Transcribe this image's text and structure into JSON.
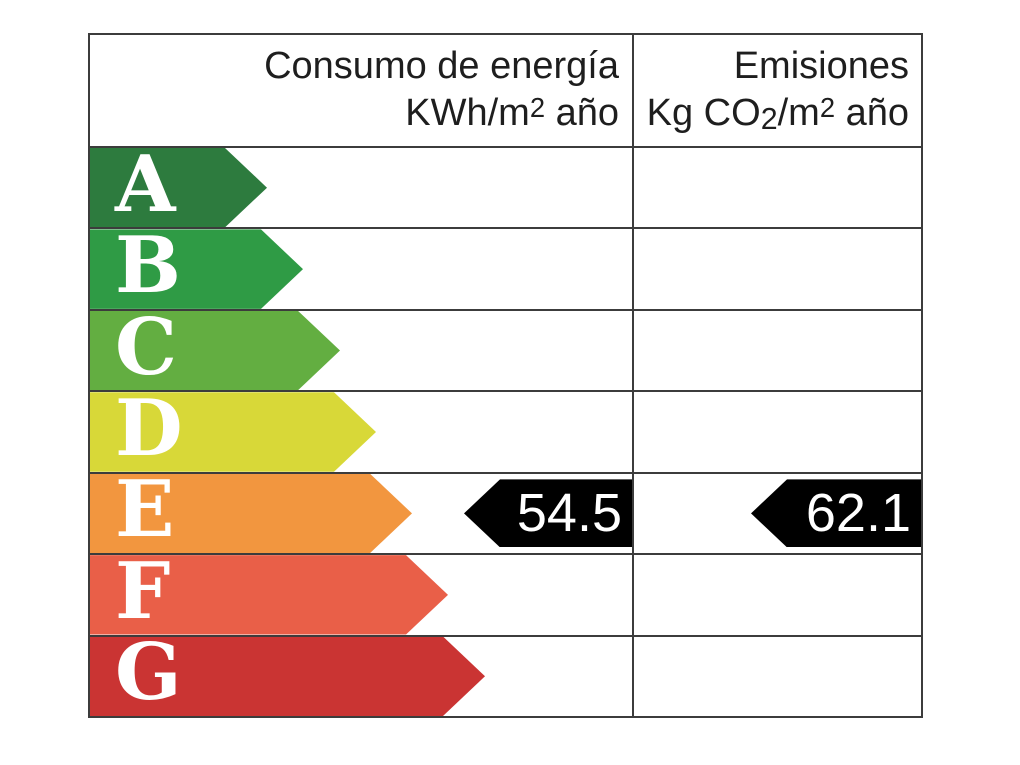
{
  "header": {
    "consumo": {
      "line1": "Consumo de energía",
      "line2_pre": "KWh/m",
      "line2_sup": "2",
      "line2_post": " año"
    },
    "emisiones": {
      "line1": "Emisiones",
      "line2_pre": "Kg CO",
      "line2_sub": "2",
      "line2_mid": "/m",
      "line2_sup": "2",
      "line2_post": " año"
    }
  },
  "ratings": [
    {
      "letter": "A",
      "color": "#2d7b3e"
    },
    {
      "letter": "B",
      "color": "#2f9b45"
    },
    {
      "letter": "C",
      "color": "#63ae41"
    },
    {
      "letter": "D",
      "color": "#d8d838"
    },
    {
      "letter": "E",
      "color": "#f2963f"
    },
    {
      "letter": "F",
      "color": "#e95f48"
    },
    {
      "letter": "G",
      "color": "#ca3433"
    }
  ],
  "indicators": {
    "consumo": {
      "value": "54.5",
      "rating": "E",
      "arrow_color": "#000000",
      "text_color": "#ffffff"
    },
    "emisiones": {
      "value": "62.1",
      "rating": "E",
      "arrow_color": "#000000",
      "text_color": "#ffffff"
    }
  },
  "border_color": "#3c3c3c",
  "chart_data": {
    "type": "bar",
    "title": "",
    "categories": [
      "A",
      "B",
      "C",
      "D",
      "E",
      "F",
      "G"
    ],
    "category_colors": [
      "#2d7b3e",
      "#2f9b45",
      "#63ae41",
      "#d8d838",
      "#f2963f",
      "#e95f48",
      "#ca3433"
    ],
    "series": [
      {
        "name": "Consumo de energía KWh/m2 año",
        "rating": "E",
        "value": 54.5
      },
      {
        "name": "Emisiones Kg CO2/m2 año",
        "rating": "E",
        "value": 62.1
      }
    ],
    "legend_position": "none",
    "orientation": "horizontal",
    "grid": "table-borders"
  }
}
